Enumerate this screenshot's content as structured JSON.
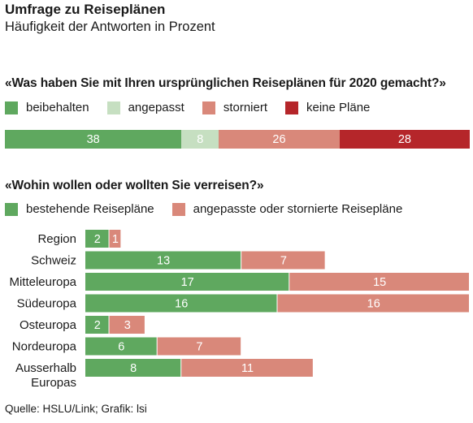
{
  "header": {
    "title": "Umfrage zu Reiseplänen",
    "subtitle": "Häufigkeit der Antworten in Prozent"
  },
  "footer": {
    "source": "Quelle: HSLU/Link; Grafik: lsi"
  },
  "chart_data": [
    {
      "type": "bar",
      "orientation": "horizontal",
      "stacked": true,
      "title": "«Was haben Sie mit Ihren ursprünglichen Reiseplänen für 2020 gemacht?»",
      "legend_position": "top",
      "series": [
        {
          "name": "beibehalten",
          "value": 38,
          "color": "#5fa85f"
        },
        {
          "name": "angepasst",
          "value": 8,
          "color": "#c6dfc1"
        },
        {
          "name": "storniert",
          "value": 26,
          "color": "#d9887a"
        },
        {
          "name": "keine Pläne",
          "value": 28,
          "color": "#b5262a"
        }
      ],
      "xlim": [
        0,
        100
      ],
      "grid": false
    },
    {
      "type": "bar",
      "orientation": "horizontal",
      "stacked": true,
      "title": "«Wohin wollen oder wollten Sie verreisen?»",
      "legend_position": "top",
      "categories": [
        "Region",
        "Schweiz",
        "Mitteleuropa",
        "Südeuropa",
        "Osteuropa",
        "Nordeuropa",
        "Ausserhalb Europas"
      ],
      "series": [
        {
          "name": "bestehende Reisepläne",
          "color": "#5fa85f",
          "values": [
            2,
            13,
            17,
            16,
            2,
            6,
            8
          ]
        },
        {
          "name": "angepasste oder stornierte Reisepläne",
          "color": "#d9887a",
          "values": [
            1,
            7,
            15,
            16,
            3,
            7,
            11
          ]
        }
      ],
      "xlim": [
        0,
        32
      ],
      "grid": false
    }
  ]
}
